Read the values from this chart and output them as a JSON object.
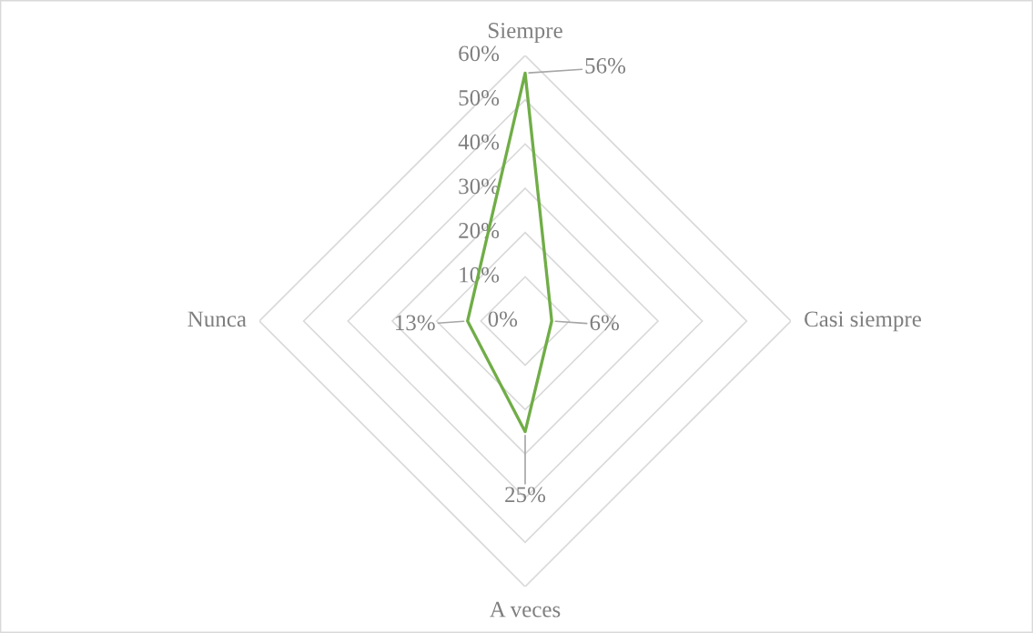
{
  "chart_data": {
    "type": "radar",
    "categories": [
      "Siempre",
      "Casi siempre",
      "A veces",
      "Nunca"
    ],
    "series": [
      {
        "color": "#70ad47",
        "values": [
          56,
          6,
          25,
          13
        ],
        "value_labels": [
          "56%",
          "6%",
          "25%",
          "13%"
        ]
      }
    ],
    "ylim": [
      0,
      60
    ],
    "yticks": [
      {
        "value": 0,
        "label": "0%"
      },
      {
        "value": 10,
        "label": "10%"
      },
      {
        "value": 20,
        "label": "20%"
      },
      {
        "value": 30,
        "label": "30%"
      },
      {
        "value": 40,
        "label": "40%"
      },
      {
        "value": 50,
        "label": "50%"
      },
      {
        "value": 60,
        "label": "60%"
      }
    ],
    "grid": true
  }
}
